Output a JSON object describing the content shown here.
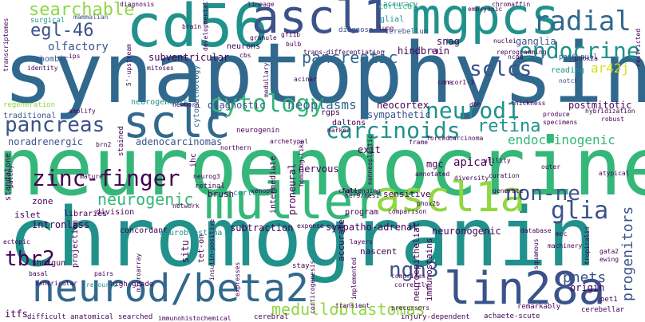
{
  "word_cloud": {
    "palette": {
      "dark_purple": "#440154",
      "indigo": "#3b528b",
      "blue": "#31688e",
      "teal": "#21918c",
      "green": "#35b779",
      "lime": "#90d743",
      "yellow": "#d2e21b"
    },
    "words": [
      {
        "text": "synaptophysin"
      },
      {
        "text": "neuroendocrine"
      },
      {
        "text": "chromogranin"
      },
      {
        "text": "cd56"
      },
      {
        "text": "mgpcs"
      },
      {
        "text": "ascl1"
      },
      {
        "text": "muller"
      },
      {
        "text": "ascl1a"
      },
      {
        "text": "neurod/beta2"
      },
      {
        "text": "lin28a"
      },
      {
        "text": "sclc"
      },
      {
        "text": "radial"
      },
      {
        "text": "endocrine"
      },
      {
        "text": "searchable"
      },
      {
        "text": "egl-46"
      },
      {
        "text": "pancreatic"
      },
      {
        "text": "sclcs"
      },
      {
        "text": "cytology"
      },
      {
        "text": "carcinoids"
      },
      {
        "text": "neurod1"
      },
      {
        "text": "retina"
      },
      {
        "text": "pancreas"
      },
      {
        "text": "zinc-finger"
      },
      {
        "text": "glia"
      },
      {
        "text": "non-ne"
      },
      {
        "text": "neurogenic"
      },
      {
        "text": "ngn3"
      },
      {
        "text": "tbr2"
      },
      {
        "text": "medulloblastomas"
      },
      {
        "text": "pnets"
      },
      {
        "text": "progenitors"
      },
      {
        "text": "ar42j"
      },
      {
        "text": "endocrinogenic"
      },
      {
        "text": "neoplasms"
      },
      {
        "text": "diagnostic"
      },
      {
        "text": "adenocarcinomas"
      },
      {
        "text": "noradrenergic"
      },
      {
        "text": "sympathetic"
      },
      {
        "text": "neocortex"
      },
      {
        "text": "postmitotic"
      },
      {
        "text": "olfactory"
      },
      {
        "text": "subventricular"
      },
      {
        "text": "hindbrain"
      },
      {
        "text": "ganglia"
      },
      {
        "text": "snag"
      },
      {
        "text": "cortical"
      },
      {
        "text": "glial"
      },
      {
        "text": "accuracy"
      },
      {
        "text": "cerebellum"
      },
      {
        "text": "diagnose"
      },
      {
        "text": "diagnosis"
      },
      {
        "text": "surgical"
      },
      {
        "text": "mammalian"
      },
      {
        "text": "rhombic"
      },
      {
        "text": "neurons"
      },
      {
        "text": "neurogenesis"
      },
      {
        "text": "regeneration"
      },
      {
        "text": "traditional"
      },
      {
        "text": "cytopathology"
      },
      {
        "text": "reading"
      },
      {
        "text": "pax6-null"
      },
      {
        "text": "notch"
      },
      {
        "text": "rcor1-3"
      },
      {
        "text": "acinar"
      },
      {
        "text": "trans-differentiation"
      },
      {
        "text": "reprogramming"
      },
      {
        "text": "identity"
      },
      {
        "text": "mitoses"
      },
      {
        "text": "daltons"
      },
      {
        "text": "rgps"
      },
      {
        "text": "neurogenin"
      },
      {
        "text": "intermediate"
      },
      {
        "text": "exit"
      },
      {
        "text": "apical"
      },
      {
        "text": "mgc"
      },
      {
        "text": "nervous"
      },
      {
        "text": "proneural"
      },
      {
        "text": "ihc"
      },
      {
        "text": "retinal"
      },
      {
        "text": "brush"
      },
      {
        "text": "cortex"
      },
      {
        "text": "standalone"
      },
      {
        "text": "islet"
      },
      {
        "text": "zone"
      },
      {
        "text": "intronless"
      },
      {
        "text": "concordant"
      },
      {
        "text": "libraries"
      },
      {
        "text": "division"
      },
      {
        "text": "neuroblastoma"
      },
      {
        "text": "subtraction"
      },
      {
        "text": "sympatho-adrenal"
      },
      {
        "text": "program"
      },
      {
        "text": "neuronogenic"
      },
      {
        "text": "sensitive"
      },
      {
        "text": "nascent"
      },
      {
        "text": "accurate"
      },
      {
        "text": "neuroepithelial"
      },
      {
        "text": "immunostains"
      },
      {
        "text": "origin"
      },
      {
        "text": "shotgun"
      },
      {
        "text": "projection"
      },
      {
        "text": "situ"
      },
      {
        "text": "tet-on"
      },
      {
        "text": "high-grade"
      },
      {
        "text": "resource"
      },
      {
        "text": "anatomical"
      },
      {
        "text": "searched"
      },
      {
        "text": "immunohistochemical"
      },
      {
        "text": "cerebral"
      },
      {
        "text": "injury-dependent"
      },
      {
        "text": "achaete-scute"
      },
      {
        "text": "cerebellar"
      },
      {
        "text": "difficult"
      },
      {
        "text": "itfs"
      },
      {
        "text": "pet1"
      },
      {
        "text": "remarkably"
      },
      {
        "text": "corticogenesis"
      },
      {
        "text": "precursors"
      },
      {
        "text": "correctly"
      },
      {
        "text": "comprises"
      },
      {
        "text": "implemented"
      },
      {
        "text": "gata2"
      },
      {
        "text": "ewing"
      },
      {
        "text": "database"
      },
      {
        "text": "layers"
      },
      {
        "text": "her9/hes1"
      },
      {
        "text": "comparison"
      },
      {
        "text": "phox2b"
      },
      {
        "text": "phox2a"
      },
      {
        "text": "ncam"
      },
      {
        "text": "specimens"
      },
      {
        "text": "hybridization"
      },
      {
        "text": "produce"
      },
      {
        "text": "thickness"
      },
      {
        "text": "robust"
      },
      {
        "text": "carcinoma"
      },
      {
        "text": "forced"
      },
      {
        "text": "frame"
      },
      {
        "text": "dbh"
      },
      {
        "text": "cdna"
      },
      {
        "text": "marker"
      },
      {
        "text": "xenopus"
      },
      {
        "text": "fate"
      },
      {
        "text": "annotated"
      },
      {
        "text": "diversity"
      },
      {
        "text": "curation"
      },
      {
        "text": "generate"
      },
      {
        "text": "outer"
      },
      {
        "text": "atypical"
      },
      {
        "text": "archetypal"
      },
      {
        "text": "homolog-like"
      },
      {
        "text": "northern"
      },
      {
        "text": "stained"
      },
      {
        "text": "mature"
      },
      {
        "text": "brn2"
      },
      {
        "text": "ectopic"
      },
      {
        "text": "basal"
      },
      {
        "text": "pairs"
      },
      {
        "text": "network"
      },
      {
        "text": "ventricular"
      },
      {
        "text": "insulin-positive"
      },
      {
        "text": "stay"
      },
      {
        "text": "expense"
      },
      {
        "text": "challenging"
      },
      {
        "text": "newborn"
      },
      {
        "text": "amplify"
      },
      {
        "text": "transcriptomes"
      },
      {
        "text": "brain"
      },
      {
        "text": "ips"
      },
      {
        "text": "5'-upstream"
      },
      {
        "text": "cbs"
      },
      {
        "text": "bulb"
      },
      {
        "text": "gfi1b"
      },
      {
        "text": "lung"
      },
      {
        "text": "granule"
      },
      {
        "text": "lineage"
      },
      {
        "text": "embryonic"
      },
      {
        "text": "chromaffin"
      },
      {
        "text": "restricted"
      },
      {
        "text": "developmentally"
      },
      {
        "text": "medullary"
      },
      {
        "text": "utility"
      },
      {
        "text": "nonneoplastic"
      },
      {
        "text": "squamous"
      },
      {
        "text": "tropicalis"
      },
      {
        "text": "neurog3"
      },
      {
        "text": "patchy"
      },
      {
        "text": "transient"
      },
      {
        "text": "mcc"
      },
      {
        "text": "machinery"
      },
      {
        "text": "rg"
      },
      {
        "text": "nuclei"
      },
      {
        "text": "microarray"
      },
      {
        "text": "expresses"
      }
    ]
  }
}
